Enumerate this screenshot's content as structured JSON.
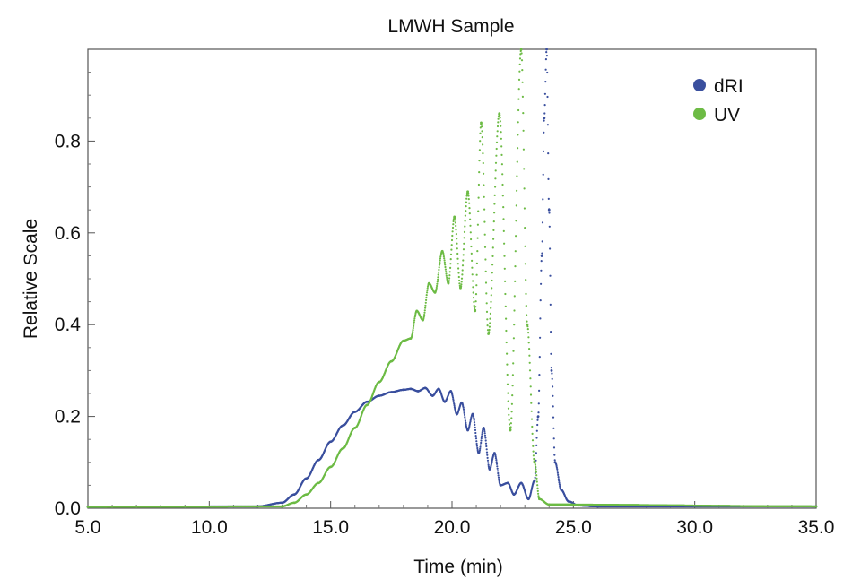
{
  "chart_data": {
    "type": "scatter",
    "title": "LMWH Sample",
    "xlabel": "Time (min)",
    "ylabel": "Relative Scale",
    "xlim": [
      5.0,
      35.0
    ],
    "ylim": [
      0.0,
      1.0
    ],
    "xticks": [
      "5.0",
      "10.0",
      "15.0",
      "20.0",
      "25.0",
      "30.0",
      "35.0"
    ],
    "yticks": [
      "0.0",
      "0.2",
      "0.4",
      "0.6",
      "0.8"
    ],
    "legend_position": "top-right",
    "grid": false,
    "series": [
      {
        "name": "dRI",
        "color": "#3a4f9e",
        "x": [
          5.0,
          12.0,
          13.0,
          13.5,
          14.0,
          14.5,
          15.0,
          15.5,
          16.0,
          16.5,
          17.0,
          17.5,
          18.0,
          18.3,
          18.6,
          18.9,
          19.2,
          19.45,
          19.7,
          19.95,
          20.2,
          20.4,
          20.65,
          20.85,
          21.1,
          21.3,
          21.55,
          21.75,
          22.0,
          22.3,
          22.55,
          22.85,
          23.15,
          23.4,
          23.55,
          23.7,
          23.8,
          23.9,
          24.0,
          24.1,
          24.25,
          24.5,
          24.8,
          25.2,
          26.0,
          35.0
        ],
        "y": [
          0.003,
          0.004,
          0.012,
          0.03,
          0.065,
          0.105,
          0.145,
          0.18,
          0.21,
          0.232,
          0.245,
          0.253,
          0.258,
          0.26,
          0.255,
          0.262,
          0.245,
          0.26,
          0.232,
          0.255,
          0.205,
          0.23,
          0.17,
          0.205,
          0.12,
          0.175,
          0.085,
          0.12,
          0.05,
          0.055,
          0.03,
          0.055,
          0.02,
          0.06,
          0.2,
          0.55,
          0.85,
          1.0,
          0.65,
          0.3,
          0.1,
          0.04,
          0.015,
          0.006,
          0.004,
          0.004
        ]
      },
      {
        "name": "UV",
        "color": "#6dbb45",
        "x": [
          5.0,
          13.0,
          13.5,
          14.0,
          14.5,
          15.0,
          15.5,
          16.0,
          16.5,
          17.0,
          17.5,
          18.0,
          18.3,
          18.55,
          18.8,
          19.05,
          19.3,
          19.6,
          19.85,
          20.1,
          20.35,
          20.65,
          20.95,
          21.2,
          21.5,
          21.95,
          22.4,
          22.85,
          23.1,
          23.4,
          23.6,
          24.0,
          35.0
        ],
        "y": [
          0.003,
          0.004,
          0.012,
          0.03,
          0.055,
          0.09,
          0.13,
          0.175,
          0.225,
          0.275,
          0.32,
          0.365,
          0.37,
          0.43,
          0.41,
          0.49,
          0.47,
          0.56,
          0.49,
          0.635,
          0.48,
          0.69,
          0.43,
          0.84,
          0.38,
          0.86,
          0.17,
          1.0,
          0.4,
          0.1,
          0.02,
          0.008,
          0.004
        ]
      }
    ]
  }
}
